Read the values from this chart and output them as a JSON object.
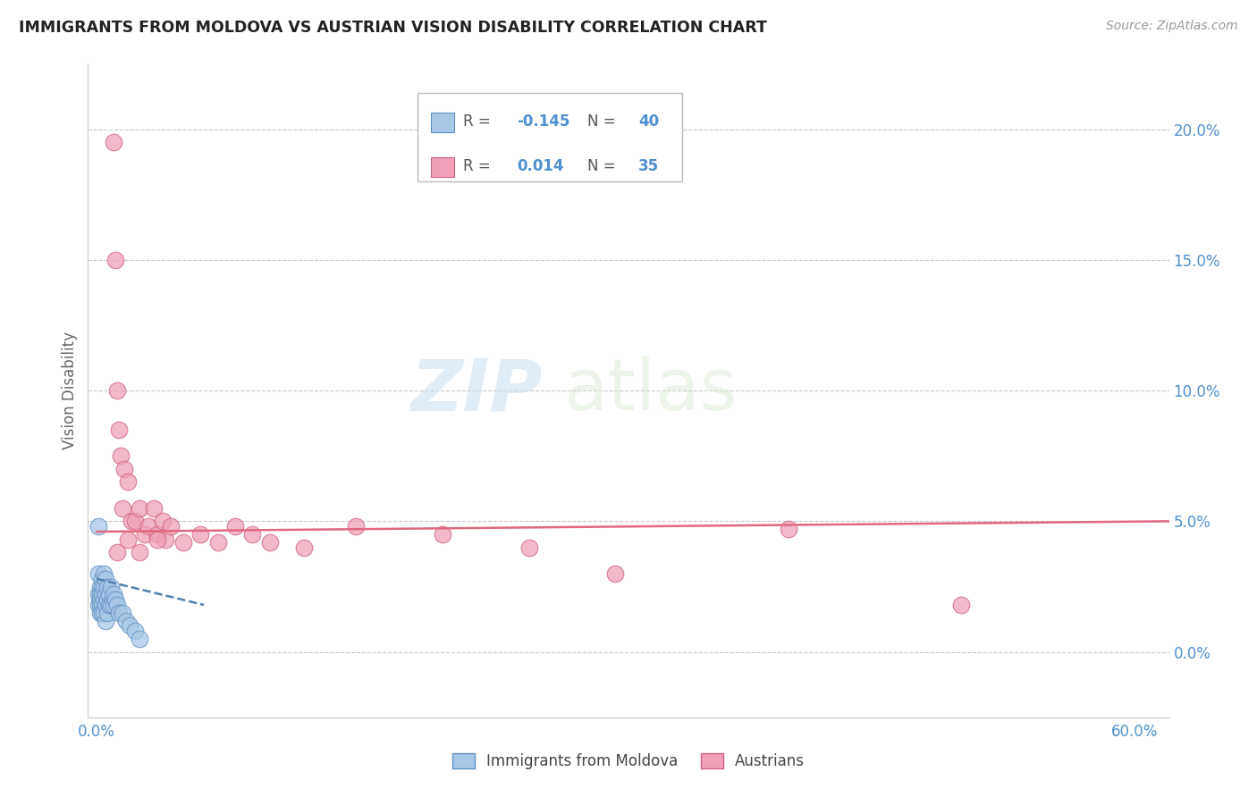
{
  "title": "IMMIGRANTS FROM MOLDOVA VS AUSTRIAN VISION DISABILITY CORRELATION CHART",
  "source": "Source: ZipAtlas.com",
  "ylabel": "Vision Disability",
  "watermark_ZIP": "ZIP",
  "watermark_atlas": "atlas",
  "legend_series1_label": "Immigrants from Moldova",
  "legend_series1_R": "-0.145",
  "legend_series1_N": "40",
  "legend_series2_label": "Austrians",
  "legend_series2_R": "0.014",
  "legend_series2_N": "35",
  "xlim": [
    -0.005,
    0.62
  ],
  "ylim": [
    -0.025,
    0.225
  ],
  "right_yticks": [
    0.0,
    0.05,
    0.1,
    0.15,
    0.2
  ],
  "right_ytick_labels": [
    "0.0%",
    "5.0%",
    "10.0%",
    "15.0%",
    "20.0%"
  ],
  "xtick_vals": [
    0.0,
    0.6
  ],
  "xtick_labels": [
    "0.0%",
    "60.0%"
  ],
  "color_blue": "#a8c8e8",
  "color_pink": "#f0a0b8",
  "color_blue_edge": "#6090c0",
  "color_pink_edge": "#d06080",
  "color_blue_line": "#5080b0",
  "color_pink_line": "#e06880",
  "color_axis_labels": "#5090d0",
  "color_grid": "#c8c8c8",
  "series1_x": [
    0.001,
    0.001,
    0.001,
    0.002,
    0.002,
    0.002,
    0.002,
    0.002,
    0.003,
    0.003,
    0.003,
    0.003,
    0.003,
    0.004,
    0.004,
    0.004,
    0.004,
    0.005,
    0.005,
    0.005,
    0.005,
    0.006,
    0.006,
    0.006,
    0.007,
    0.007,
    0.008,
    0.008,
    0.009,
    0.01,
    0.01,
    0.011,
    0.012,
    0.013,
    0.015,
    0.017,
    0.019,
    0.022,
    0.025,
    0.001
  ],
  "series1_y": [
    0.03,
    0.022,
    0.018,
    0.025,
    0.022,
    0.02,
    0.018,
    0.015,
    0.028,
    0.025,
    0.022,
    0.018,
    0.015,
    0.03,
    0.025,
    0.02,
    0.015,
    0.028,
    0.022,
    0.018,
    0.012,
    0.025,
    0.02,
    0.015,
    0.022,
    0.018,
    0.025,
    0.018,
    0.02,
    0.022,
    0.018,
    0.02,
    0.018,
    0.015,
    0.015,
    0.012,
    0.01,
    0.008,
    0.005,
    0.048
  ],
  "series2_x": [
    0.01,
    0.011,
    0.012,
    0.013,
    0.014,
    0.015,
    0.016,
    0.018,
    0.02,
    0.022,
    0.025,
    0.028,
    0.03,
    0.033,
    0.035,
    0.038,
    0.04,
    0.043,
    0.05,
    0.06,
    0.07,
    0.08,
    0.09,
    0.1,
    0.12,
    0.15,
    0.2,
    0.25,
    0.3,
    0.4,
    0.5,
    0.012,
    0.018,
    0.025,
    0.035
  ],
  "series2_y": [
    0.195,
    0.15,
    0.1,
    0.085,
    0.075,
    0.055,
    0.07,
    0.065,
    0.05,
    0.05,
    0.055,
    0.045,
    0.048,
    0.055,
    0.045,
    0.05,
    0.043,
    0.048,
    0.042,
    0.045,
    0.042,
    0.048,
    0.045,
    0.042,
    0.04,
    0.048,
    0.045,
    0.04,
    0.03,
    0.047,
    0.018,
    0.038,
    0.043,
    0.038,
    0.043
  ],
  "pink_line_x": [
    0.0,
    0.62
  ],
  "pink_line_y": [
    0.046,
    0.05
  ],
  "blue_line_x": [
    0.0,
    0.062
  ],
  "blue_line_y": [
    0.028,
    0.018
  ]
}
